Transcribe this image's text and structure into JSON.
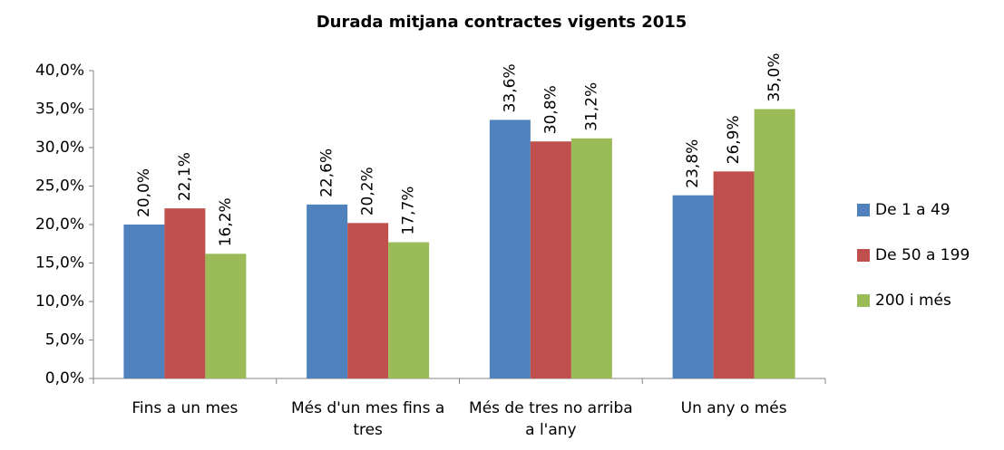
{
  "chart_data": {
    "type": "bar",
    "title": "Durada mitjana contractes vigents 2015",
    "categories": [
      "Fins a un mes",
      "Més d'un mes fins a tres",
      "Més de tres no arriba a l'any",
      "Un any o més"
    ],
    "series": [
      {
        "name": "De 1 a 49",
        "color": "#4f81bd",
        "values": [
          20.0,
          22.6,
          33.6,
          23.8
        ],
        "value_labels": [
          "20,0%",
          "22,6%",
          "33,6%",
          "23,8%"
        ]
      },
      {
        "name": "De 50 a 199",
        "color": "#c0504d",
        "values": [
          22.1,
          20.2,
          30.8,
          26.9
        ],
        "value_labels": [
          "22,1%",
          "20,2%",
          "30,8%",
          "26,9%"
        ]
      },
      {
        "name": "200 i més",
        "color": "#9bbb59",
        "values": [
          16.2,
          17.7,
          31.2,
          35.0
        ],
        "value_labels": [
          "16,2%",
          "17,7%",
          "31,2%",
          "35,0%"
        ]
      }
    ],
    "ylim": [
      0,
      40
    ],
    "yticks": [
      {
        "value": 0,
        "label": "0,0%"
      },
      {
        "value": 5,
        "label": "5,0%"
      },
      {
        "value": 10,
        "label": "10,0%"
      },
      {
        "value": 15,
        "label": "15,0%"
      },
      {
        "value": 20,
        "label": "20,0%"
      },
      {
        "value": 25,
        "label": "25,0%"
      },
      {
        "value": 30,
        "label": "30,0%"
      },
      {
        "value": 35,
        "label": "35,0%"
      },
      {
        "value": 40,
        "label": "40,0%"
      }
    ],
    "grid": false,
    "legend": "right"
  }
}
